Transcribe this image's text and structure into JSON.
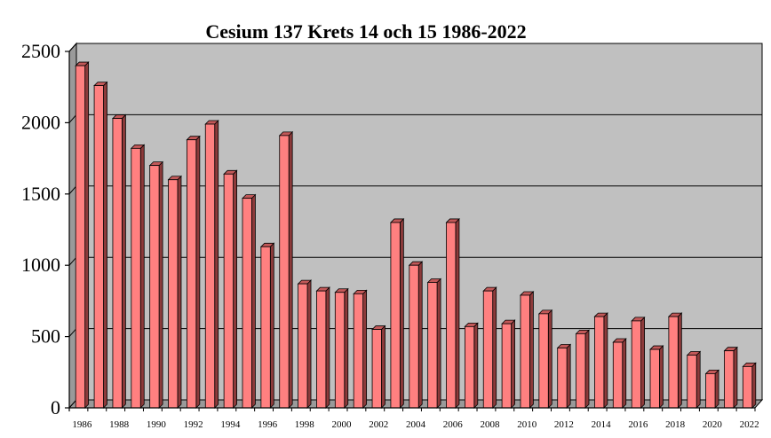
{
  "chart_data": {
    "type": "bar",
    "title": "Cesium 137 Krets 14 och 15  1986-2022",
    "xlabel": "",
    "ylabel": "",
    "ylim": [
      0,
      2500
    ],
    "yticks": [
      0,
      500,
      1000,
      1500,
      2000,
      2500
    ],
    "grid": true,
    "legend": "none",
    "categories": [
      "1986",
      "1987",
      "1988",
      "1989",
      "1990",
      "1991",
      "1992",
      "1993",
      "1994",
      "1995",
      "1996",
      "1997",
      "1998",
      "1999",
      "2000",
      "2001",
      "2002",
      "2003",
      "2004",
      "2005",
      "2006",
      "2007",
      "2008",
      "2009",
      "2010",
      "2011",
      "2012",
      "2013",
      "2014",
      "2015",
      "2016",
      "2017",
      "2018",
      "2019",
      "2020",
      "2021",
      "2022"
    ],
    "xtick_labels": [
      "1986",
      "1988",
      "1990",
      "1992",
      "1994",
      "1996",
      "1998",
      "2000",
      "2002",
      "2004",
      "2006",
      "2008",
      "2010",
      "2012",
      "2014",
      "2016",
      "2018",
      "2020",
      "2022"
    ],
    "values": [
      2400,
      2260,
      2030,
      1820,
      1700,
      1600,
      1880,
      1990,
      1640,
      1470,
      1130,
      1910,
      870,
      820,
      810,
      800,
      550,
      1300,
      1000,
      880,
      1300,
      570,
      820,
      590,
      790,
      660,
      420,
      520,
      640,
      460,
      610,
      410,
      640,
      370,
      240,
      400,
      290
    ],
    "colors": {
      "bar_front": "#ff8080",
      "bar_side": "#8c3a3a",
      "bar_top": "#c25858",
      "plot_bg": "#c0c0c0",
      "wall_side": "#9a9a9a"
    }
  }
}
